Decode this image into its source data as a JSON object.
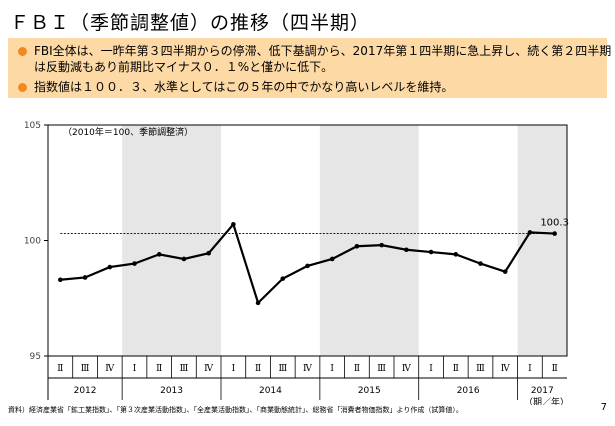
{
  "title": "ＦＢＩ（季節調整値）の推移（四半期）",
  "summary": {
    "bullets": [
      "FBI全体は、一昨年第３四半期からの停滞、低下基調から、2017年第１四半期に急上昇し、続く第２四半期は反動減もあり前期比マイナス０．１%と僅かに低下。",
      "指数値は１００．３、水準としてはこの５年の中でかなり高いレベルを維持。"
    ],
    "accent_color": "#f08a1e",
    "background_color": "#fcd9a5"
  },
  "chart_data": {
    "type": "line",
    "note": "（2010年＝100、季節調整済）",
    "ylim": [
      95,
      105
    ],
    "yticks": [
      95,
      100,
      105
    ],
    "categories": [
      "Ⅱ",
      "Ⅲ",
      "Ⅳ",
      "Ⅰ",
      "Ⅱ",
      "Ⅲ",
      "Ⅳ",
      "Ⅰ",
      "Ⅱ",
      "Ⅲ",
      "Ⅳ",
      "Ⅰ",
      "Ⅱ",
      "Ⅲ",
      "Ⅳ",
      "Ⅰ",
      "Ⅱ",
      "Ⅲ",
      "Ⅳ",
      "Ⅰ",
      "Ⅱ"
    ],
    "years": [
      {
        "label": "2012",
        "count": 3,
        "shaded": false
      },
      {
        "label": "2013",
        "count": 4,
        "shaded": true
      },
      {
        "label": "2014",
        "count": 4,
        "shaded": false
      },
      {
        "label": "2015",
        "count": 4,
        "shaded": true
      },
      {
        "label": "2016",
        "count": 4,
        "shaded": false
      },
      {
        "label": "2017",
        "count": 2,
        "shaded": true
      }
    ],
    "xlabel": "（期／年）",
    "values": [
      98.3,
      98.4,
      98.85,
      99.0,
      99.4,
      99.2,
      99.45,
      100.7,
      97.3,
      98.35,
      98.9,
      99.2,
      99.75,
      99.8,
      99.6,
      99.5,
      99.4,
      99.0,
      98.65,
      100.35,
      100.3
    ],
    "reference_line": 100.3,
    "last_value_label": "100.3",
    "shade_color": "#e6e6e6",
    "line_color": "#000000"
  },
  "footer": {
    "source": "資料）経済産業省「鉱工業指数」、「第３次産業活動指数」、「全産業活動指数」、「商業動態統計」、総務省「消費者物価指数」より作成（試算値）。",
    "page_number": "7"
  }
}
